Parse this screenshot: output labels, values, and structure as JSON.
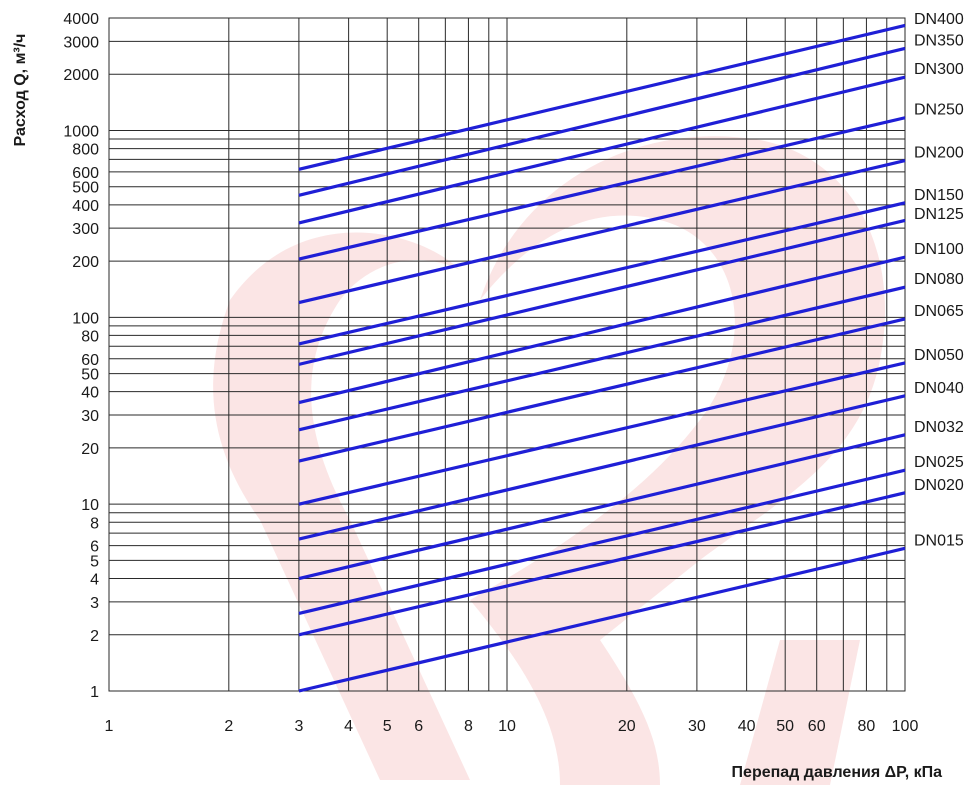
{
  "chart_data": {
    "type": "line",
    "xlabel": "Перепад давления ΔP, кПа",
    "ylabel": "Расход Q, м³/ч",
    "xscale": "log",
    "yscale": "log",
    "xlim": [
      1,
      100
    ],
    "ylim": [
      1,
      4000
    ],
    "grid": true,
    "x_tick_labels": [
      "1",
      "2",
      "3",
      "4",
      "5",
      "6",
      "8",
      "10",
      "20",
      "30",
      "40",
      "50",
      "60",
      "80",
      "100"
    ],
    "x_tick_values": [
      1,
      2,
      3,
      4,
      5,
      6,
      8,
      10,
      20,
      30,
      40,
      50,
      60,
      80,
      100
    ],
    "x_minor_gridlines": [
      7,
      9,
      70,
      90
    ],
    "y_tick_labels": [
      "1",
      "2",
      "3",
      "4",
      "5",
      "6",
      "8",
      "10",
      "20",
      "30",
      "40",
      "50",
      "60",
      "80",
      "100",
      "200",
      "300",
      "400",
      "500",
      "600",
      "800",
      "1000",
      "2000",
      "3000",
      "4000"
    ],
    "y_tick_values": [
      1,
      2,
      3,
      4,
      5,
      6,
      8,
      10,
      20,
      30,
      40,
      50,
      60,
      80,
      100,
      200,
      300,
      400,
      500,
      600,
      800,
      1000,
      2000,
      3000,
      4000
    ],
    "y_minor_gridlines": [
      7,
      9,
      70,
      90,
      700,
      900
    ],
    "line_color": "#1f1fd6",
    "grid_color": "#2a2a2a",
    "watermark_color": "#fbe5e5",
    "series": [
      {
        "name": "DN015",
        "x": [
          3,
          100
        ],
        "y": [
          1.0,
          5.8
        ]
      },
      {
        "name": "DN020",
        "x": [
          3,
          100
        ],
        "y": [
          2.0,
          11.5
        ]
      },
      {
        "name": "DN025",
        "x": [
          3,
          100
        ],
        "y": [
          2.6,
          15.2
        ]
      },
      {
        "name": "DN032",
        "x": [
          3,
          100
        ],
        "y": [
          4.0,
          23.5
        ]
      },
      {
        "name": "DN040",
        "x": [
          3,
          100
        ],
        "y": [
          6.5,
          38.0
        ]
      },
      {
        "name": "DN050",
        "x": [
          3,
          100
        ],
        "y": [
          10.0,
          57.0
        ]
      },
      {
        "name": "DN065",
        "x": [
          3,
          100
        ],
        "y": [
          17.0,
          98.0
        ]
      },
      {
        "name": "DN080",
        "x": [
          3,
          100
        ],
        "y": [
          25.0,
          145.0
        ]
      },
      {
        "name": "DN100",
        "x": [
          3,
          100
        ],
        "y": [
          35.0,
          210.0
        ]
      },
      {
        "name": "DN125",
        "x": [
          3,
          100
        ],
        "y": [
          56.0,
          330.0
        ]
      },
      {
        "name": "DN150",
        "x": [
          3,
          100
        ],
        "y": [
          72.0,
          410.0
        ]
      },
      {
        "name": "DN200",
        "x": [
          3,
          100
        ],
        "y": [
          120.0,
          690.0
        ]
      },
      {
        "name": "DN250",
        "x": [
          3,
          100
        ],
        "y": [
          205.0,
          1170.0
        ]
      },
      {
        "name": "DN300",
        "x": [
          3,
          100
        ],
        "y": [
          320.0,
          1930.0
        ]
      },
      {
        "name": "DN350",
        "x": [
          3,
          100
        ],
        "y": [
          450.0,
          2750.0
        ]
      },
      {
        "name": "DN400",
        "x": [
          3,
          100
        ],
        "y": [
          620.0,
          3650.0
        ]
      }
    ]
  }
}
